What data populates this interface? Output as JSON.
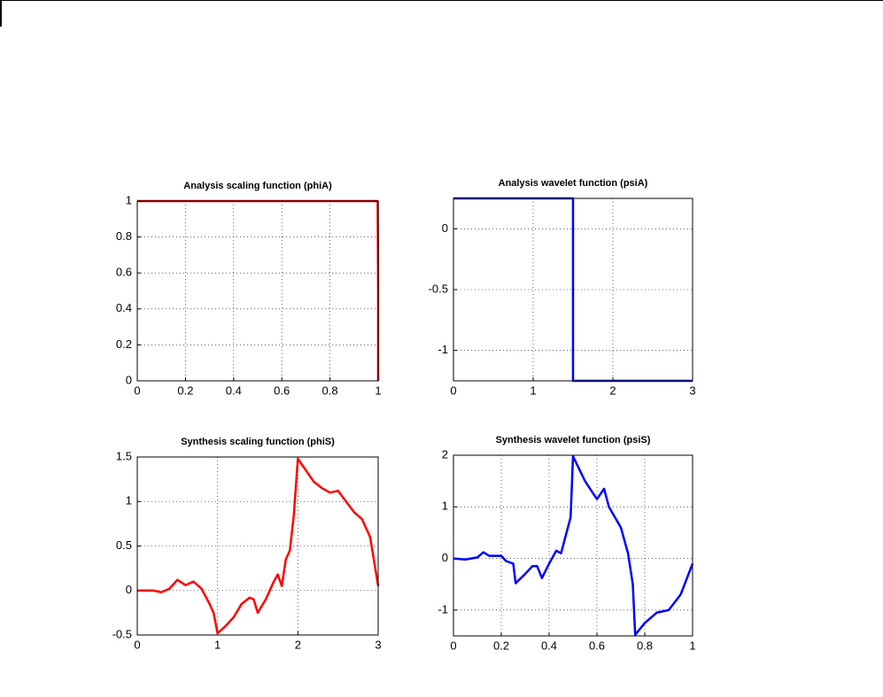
{
  "chart_data": [
    {
      "type": "line",
      "title": "Analysis scaling function (phiA)",
      "x": [
        0,
        0.998,
        1,
        1
      ],
      "series": [
        {
          "color": "#ff0000",
          "values": [
            1,
            1,
            0.5,
            0
          ]
        }
      ],
      "xlim": [
        0,
        1
      ],
      "ylim": [
        0,
        1
      ],
      "xticks": [
        0,
        0.2,
        0.4,
        0.6,
        0.8,
        1
      ],
      "yticks": [
        0,
        0.2,
        0.4,
        0.6,
        0.8,
        1
      ],
      "grid": true
    },
    {
      "type": "line",
      "title": "Analysis wavelet function (psiA)",
      "x": [
        0,
        1.5,
        1.5,
        3
      ],
      "series": [
        {
          "color": "#0000ff",
          "values": [
            0.25,
            0.25,
            -1.25,
            -1.25
          ]
        }
      ],
      "xlim": [
        0,
        3
      ],
      "ylim": [
        -1.25,
        0.25
      ],
      "xticks": [
        0,
        1,
        2,
        3
      ],
      "yticks": [
        -1,
        -0.5,
        0
      ],
      "grid": true
    },
    {
      "type": "line",
      "title": "Synthesis scaling function (phiS)",
      "x": [
        0,
        0.2,
        0.3,
        0.4,
        0.5,
        0.6,
        0.7,
        0.8,
        0.9,
        0.95,
        1.0,
        1.1,
        1.2,
        1.3,
        1.4,
        1.45,
        1.5,
        1.6,
        1.7,
        1.75,
        1.8,
        1.85,
        1.9,
        1.95,
        2.0,
        2.1,
        2.2,
        2.3,
        2.4,
        2.5,
        2.6,
        2.7,
        2.8,
        2.9,
        3.0
      ],
      "series": [
        {
          "color": "#ff0000",
          "values": [
            0,
            0,
            -0.02,
            0.02,
            0.12,
            0.06,
            0.1,
            0.02,
            -0.15,
            -0.25,
            -0.48,
            -0.4,
            -0.3,
            -0.15,
            -0.08,
            -0.1,
            -0.25,
            -0.1,
            0.1,
            0.18,
            0.05,
            0.35,
            0.45,
            0.85,
            1.48,
            1.35,
            1.22,
            1.15,
            1.1,
            1.12,
            1.0,
            0.88,
            0.8,
            0.6,
            0.05
          ]
        }
      ],
      "xlim": [
        0,
        3
      ],
      "ylim": [
        -0.5,
        1.5
      ],
      "xticks": [
        0,
        1,
        2,
        3
      ],
      "yticks": [
        -0.5,
        0,
        0.5,
        1,
        1.5
      ],
      "grid": true
    },
    {
      "type": "line",
      "title": "Synthesis wavelet function (psiS)",
      "x": [
        0,
        0.05,
        0.1,
        0.125,
        0.15,
        0.2,
        0.22,
        0.25,
        0.26,
        0.3,
        0.33,
        0.35,
        0.37,
        0.4,
        0.43,
        0.45,
        0.47,
        0.49,
        0.5,
        0.55,
        0.6,
        0.63,
        0.65,
        0.7,
        0.73,
        0.75,
        0.76,
        0.8,
        0.85,
        0.9,
        0.95,
        1.0
      ],
      "series": [
        {
          "color": "#0000ff",
          "values": [
            0,
            -0.02,
            0.02,
            0.12,
            0.05,
            0.05,
            -0.05,
            -0.1,
            -0.48,
            -0.3,
            -0.15,
            -0.15,
            -0.38,
            -0.1,
            0.15,
            0.1,
            0.45,
            0.8,
            1.98,
            1.5,
            1.15,
            1.35,
            1.0,
            0.6,
            0.1,
            -0.5,
            -1.48,
            -1.25,
            -1.05,
            -1.0,
            -0.7,
            -0.1
          ]
        }
      ],
      "xlim": [
        0,
        1
      ],
      "ylim": [
        -1.5,
        2
      ],
      "xticks": [
        0,
        0.2,
        0.4,
        0.6,
        0.8,
        1
      ],
      "yticks": [
        -1,
        0,
        1,
        2
      ],
      "grid": true
    }
  ]
}
